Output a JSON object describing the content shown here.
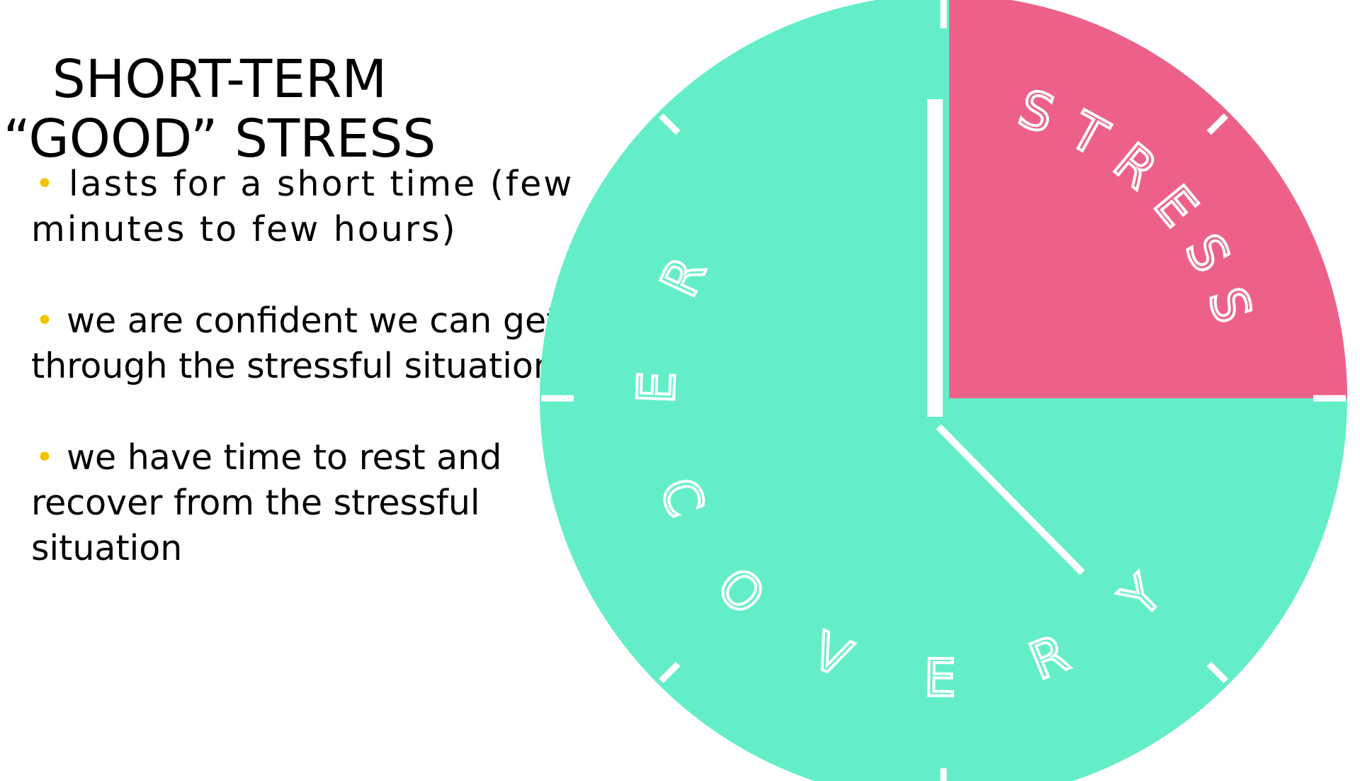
{
  "title": {
    "line1": "SHORT-TERM",
    "line2": "“GOOD” STRESS"
  },
  "bullets": [
    {
      "text": "lasts for a short time (few minutes to few hours)"
    },
    {
      "text": "we are confident we can get through the stressful situation"
    },
    {
      "text": "we have time to rest and recover from the stressful situation"
    }
  ],
  "clock": {
    "stress_label": "STRESS",
    "recovery_label": "RECOVERY",
    "stress_fraction": 0.25,
    "colors": {
      "stress": "#ed6189",
      "recovery": "#63eec8",
      "bullet": "#f5c400",
      "marks": "#ffffff"
    }
  }
}
